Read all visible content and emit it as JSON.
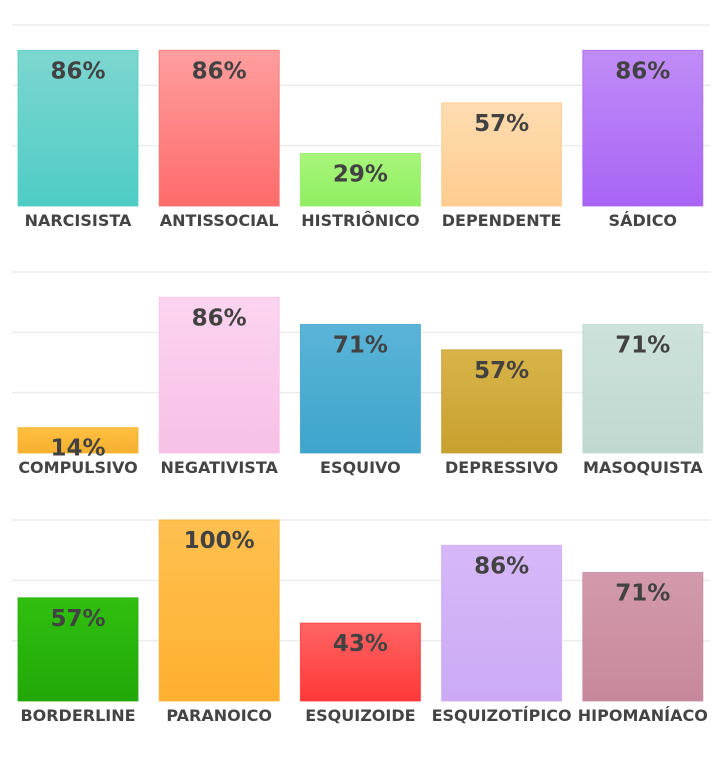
{
  "chart_data": [
    {
      "type": "bar",
      "ylim": [
        0,
        100
      ],
      "grid": true,
      "categories": [
        "NARCISISTA",
        "ANTISSOCIAL",
        "HISTRIÔNICO",
        "DEPENDENTE",
        "SÁDICO"
      ],
      "values": [
        86,
        86,
        29,
        57,
        86
      ],
      "labels": [
        "86%",
        "86%",
        "29%",
        "57%",
        "86%"
      ],
      "colors": [
        [
          "#7dd6d0",
          "#4ecdc4"
        ],
        [
          "#ff9e9e",
          "#ff6b6b"
        ],
        [
          "#a8f57a",
          "#90ee62"
        ],
        [
          "#ffdcb0",
          "#ffcc90"
        ],
        [
          "#c08cf7",
          "#a864f5"
        ]
      ]
    },
    {
      "type": "bar",
      "ylim": [
        0,
        100
      ],
      "grid": true,
      "categories": [
        "COMPULSIVO",
        "NEGATIVISTA",
        "ESQUIVO",
        "DEPRESSIVO",
        "MASOQUISTA"
      ],
      "values": [
        14,
        86,
        71,
        57,
        71
      ],
      "labels": [
        "14%",
        "86%",
        "71%",
        "57%",
        "71%"
      ],
      "colors": [
        [
          "#ffc040",
          "#f7b030"
        ],
        [
          "#fcd4f0",
          "#f8c0e6"
        ],
        [
          "#5ab4d8",
          "#3fa4cc"
        ],
        [
          "#d8b448",
          "#c8a030"
        ],
        [
          "#cce2da",
          "#c0d8d0"
        ]
      ]
    },
    {
      "type": "bar",
      "ylim": [
        0,
        100
      ],
      "grid": true,
      "categories": [
        "BORDERLINE",
        "PARANOICO",
        "ESQUIZOIDE",
        "ESQUIZOTÍPICO",
        "HIPOMANÍACO"
      ],
      "values": [
        57,
        100,
        43,
        86,
        71
      ],
      "labels": [
        "57%",
        "100%",
        "43%",
        "86%",
        "71%"
      ],
      "colors": [
        [
          "#30c010",
          "#22a808"
        ],
        [
          "#ffc050",
          "#ffb030"
        ],
        [
          "#ff6464",
          "#ff3838"
        ],
        [
          "#d6b8f8",
          "#ccaaf5"
        ],
        [
          "#d29aaa",
          "#c8889c"
        ]
      ]
    }
  ]
}
